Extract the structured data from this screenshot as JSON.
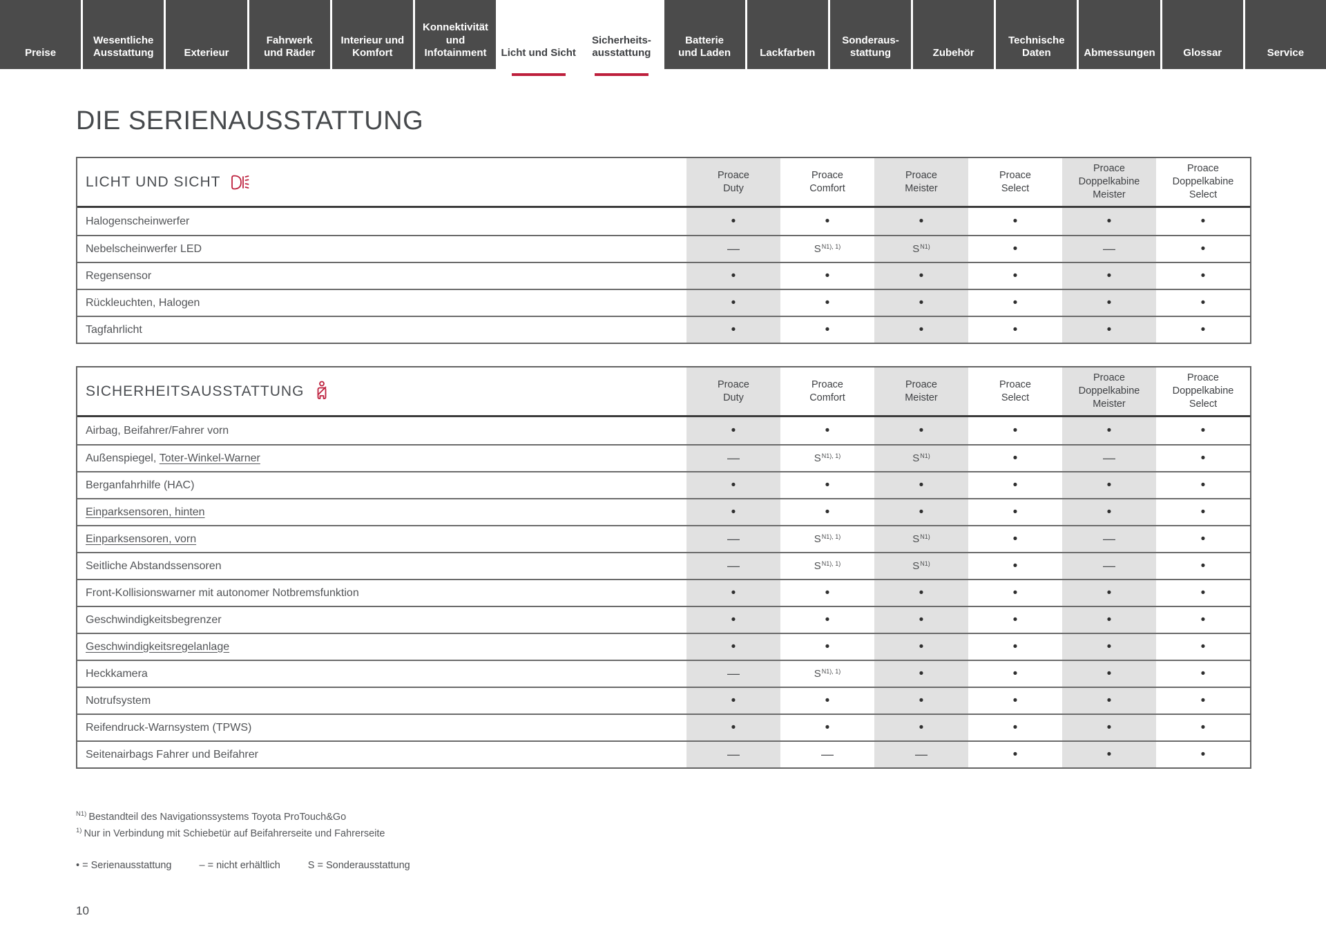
{
  "page": {
    "title": "DIE SERIENAUSSTATTUNG",
    "number": "10"
  },
  "colors": {
    "accent_red": "#bd1f3c",
    "tab_dark": "#4b4b4b",
    "column_shade": "#e1e1e1"
  },
  "nav": {
    "tabs": [
      {
        "id": "preise",
        "label": "Preise",
        "active": false
      },
      {
        "id": "wesentliche-ausstattung",
        "label": "Wesentliche\nAusstattung",
        "active": false
      },
      {
        "id": "exterieur",
        "label": "Exterieur",
        "active": false
      },
      {
        "id": "fahrwerk-und-raeder",
        "label": "Fahrwerk\nund Räder",
        "active": false
      },
      {
        "id": "interieur-und-komfort",
        "label": "Interieur und\nKomfort",
        "active": false
      },
      {
        "id": "konnektivitaet-und-infotainment",
        "label": "Konnektivität\nund\nInfotainment",
        "active": false
      },
      {
        "id": "licht-und-sicht",
        "label": "Licht und Sicht",
        "active": true
      },
      {
        "id": "sicherheitsausstattung",
        "label": "Sicherheits-\nausstattung",
        "active": true
      },
      {
        "id": "batterie-und-laden",
        "label": "Batterie\nund Laden",
        "active": false
      },
      {
        "id": "lackfarben",
        "label": "Lackfarben",
        "active": false
      },
      {
        "id": "sonderausstattung",
        "label": "Sonderaus-\nstattung",
        "active": false
      },
      {
        "id": "zubehoer",
        "label": "Zubehör",
        "active": false
      },
      {
        "id": "technische-daten",
        "label": "Technische\nDaten",
        "active": false
      },
      {
        "id": "abmessungen",
        "label": "Abmessungen",
        "active": false
      },
      {
        "id": "glossar",
        "label": "Glossar",
        "active": false
      },
      {
        "id": "service",
        "label": "Service",
        "active": false
      }
    ]
  },
  "columns": [
    "Proace\nDuty",
    "Proace\nComfort",
    "Proace\nMeister",
    "Proace\nSelect",
    "Proace\nDoppelkabine\nMeister",
    "Proace\nDoppelkabine\nSelect"
  ],
  "tables": [
    {
      "id": "licht-und-sicht",
      "title": "LICHT UND SICHT",
      "icon": "headlight-icon",
      "rows": [
        {
          "label": "Halogenscheinwerfer",
          "values": [
            "•",
            "•",
            "•",
            "•",
            "•",
            "•"
          ]
        },
        {
          "label": "Nebelscheinwerfer LED",
          "values": [
            "—",
            "S^N1), 1)",
            "S^N1)",
            "•",
            "—",
            "•"
          ]
        },
        {
          "label": "Regensensor",
          "values": [
            "•",
            "•",
            "•",
            "•",
            "•",
            "•"
          ]
        },
        {
          "label": "Rückleuchten, Halogen",
          "values": [
            "•",
            "•",
            "•",
            "•",
            "•",
            "•"
          ]
        },
        {
          "label": "Tagfahrlicht",
          "values": [
            "•",
            "•",
            "•",
            "•",
            "•",
            "•"
          ]
        }
      ]
    },
    {
      "id": "sicherheitsausstattung",
      "title": "SICHERHEITSAUSSTATTUNG",
      "icon": "seatbelt-icon",
      "rows": [
        {
          "label": "Airbag, Beifahrer/Fahrer vorn",
          "values": [
            "•",
            "•",
            "•",
            "•",
            "•",
            "•"
          ]
        },
        {
          "label": "Außenspiegel, Toter-Winkel-Warner",
          "link": "Toter-Winkel-Warner",
          "values": [
            "—",
            "S^N1), 1)",
            "S^N1)",
            "•",
            "—",
            "•"
          ]
        },
        {
          "label": "Berganfahrhilfe (HAC)",
          "values": [
            "•",
            "•",
            "•",
            "•",
            "•",
            "•"
          ]
        },
        {
          "label": "Einparksensoren, hinten",
          "link": "Einparksensoren, hinten",
          "values": [
            "•",
            "•",
            "•",
            "•",
            "•",
            "•"
          ]
        },
        {
          "label": "Einparksensoren, vorn",
          "link": "Einparksensoren, vorn",
          "values": [
            "—",
            "S^N1), 1)",
            "S^N1)",
            "•",
            "—",
            "•"
          ]
        },
        {
          "label": "Seitliche Abstandssensoren",
          "values": [
            "—",
            "S^N1), 1)",
            "S^N1)",
            "•",
            "—",
            "•"
          ]
        },
        {
          "label": "Front-Kollisionswarner mit autonomer Notbremsfunktion",
          "values": [
            "•",
            "•",
            "•",
            "•",
            "•",
            "•"
          ]
        },
        {
          "label": "Geschwindigkeitsbegrenzer",
          "values": [
            "•",
            "•",
            "•",
            "•",
            "•",
            "•"
          ]
        },
        {
          "label": "Geschwindigkeitsregelanlage",
          "link": "Geschwindigkeitsregelanlage",
          "values": [
            "•",
            "•",
            "•",
            "•",
            "•",
            "•"
          ]
        },
        {
          "label": "Heckkamera",
          "values": [
            "—",
            "S^N1), 1)",
            "•",
            "•",
            "•",
            "•"
          ]
        },
        {
          "label": "Notrufsystem",
          "values": [
            "•",
            "•",
            "•",
            "•",
            "•",
            "•"
          ]
        },
        {
          "label": "Reifendruck-Warnsystem (TPWS)",
          "values": [
            "•",
            "•",
            "•",
            "•",
            "•",
            "•"
          ]
        },
        {
          "label": "Seitenairbags Fahrer und Beifahrer",
          "values": [
            "—",
            "—",
            "—",
            "•",
            "•",
            "•"
          ]
        }
      ]
    }
  ],
  "footnotes": [
    {
      "sup": "N1)",
      "text": "Bestandteil des Navigationssystems Toyota ProTouch&Go"
    },
    {
      "sup": "1)",
      "text": "Nur in Verbindung mit Schiebetür auf Beifahrerseite und Fahrerseite"
    }
  ],
  "legend": [
    "• = Serienausstattung",
    "– = nicht erhältlich",
    "S = Sonderausstattung"
  ]
}
